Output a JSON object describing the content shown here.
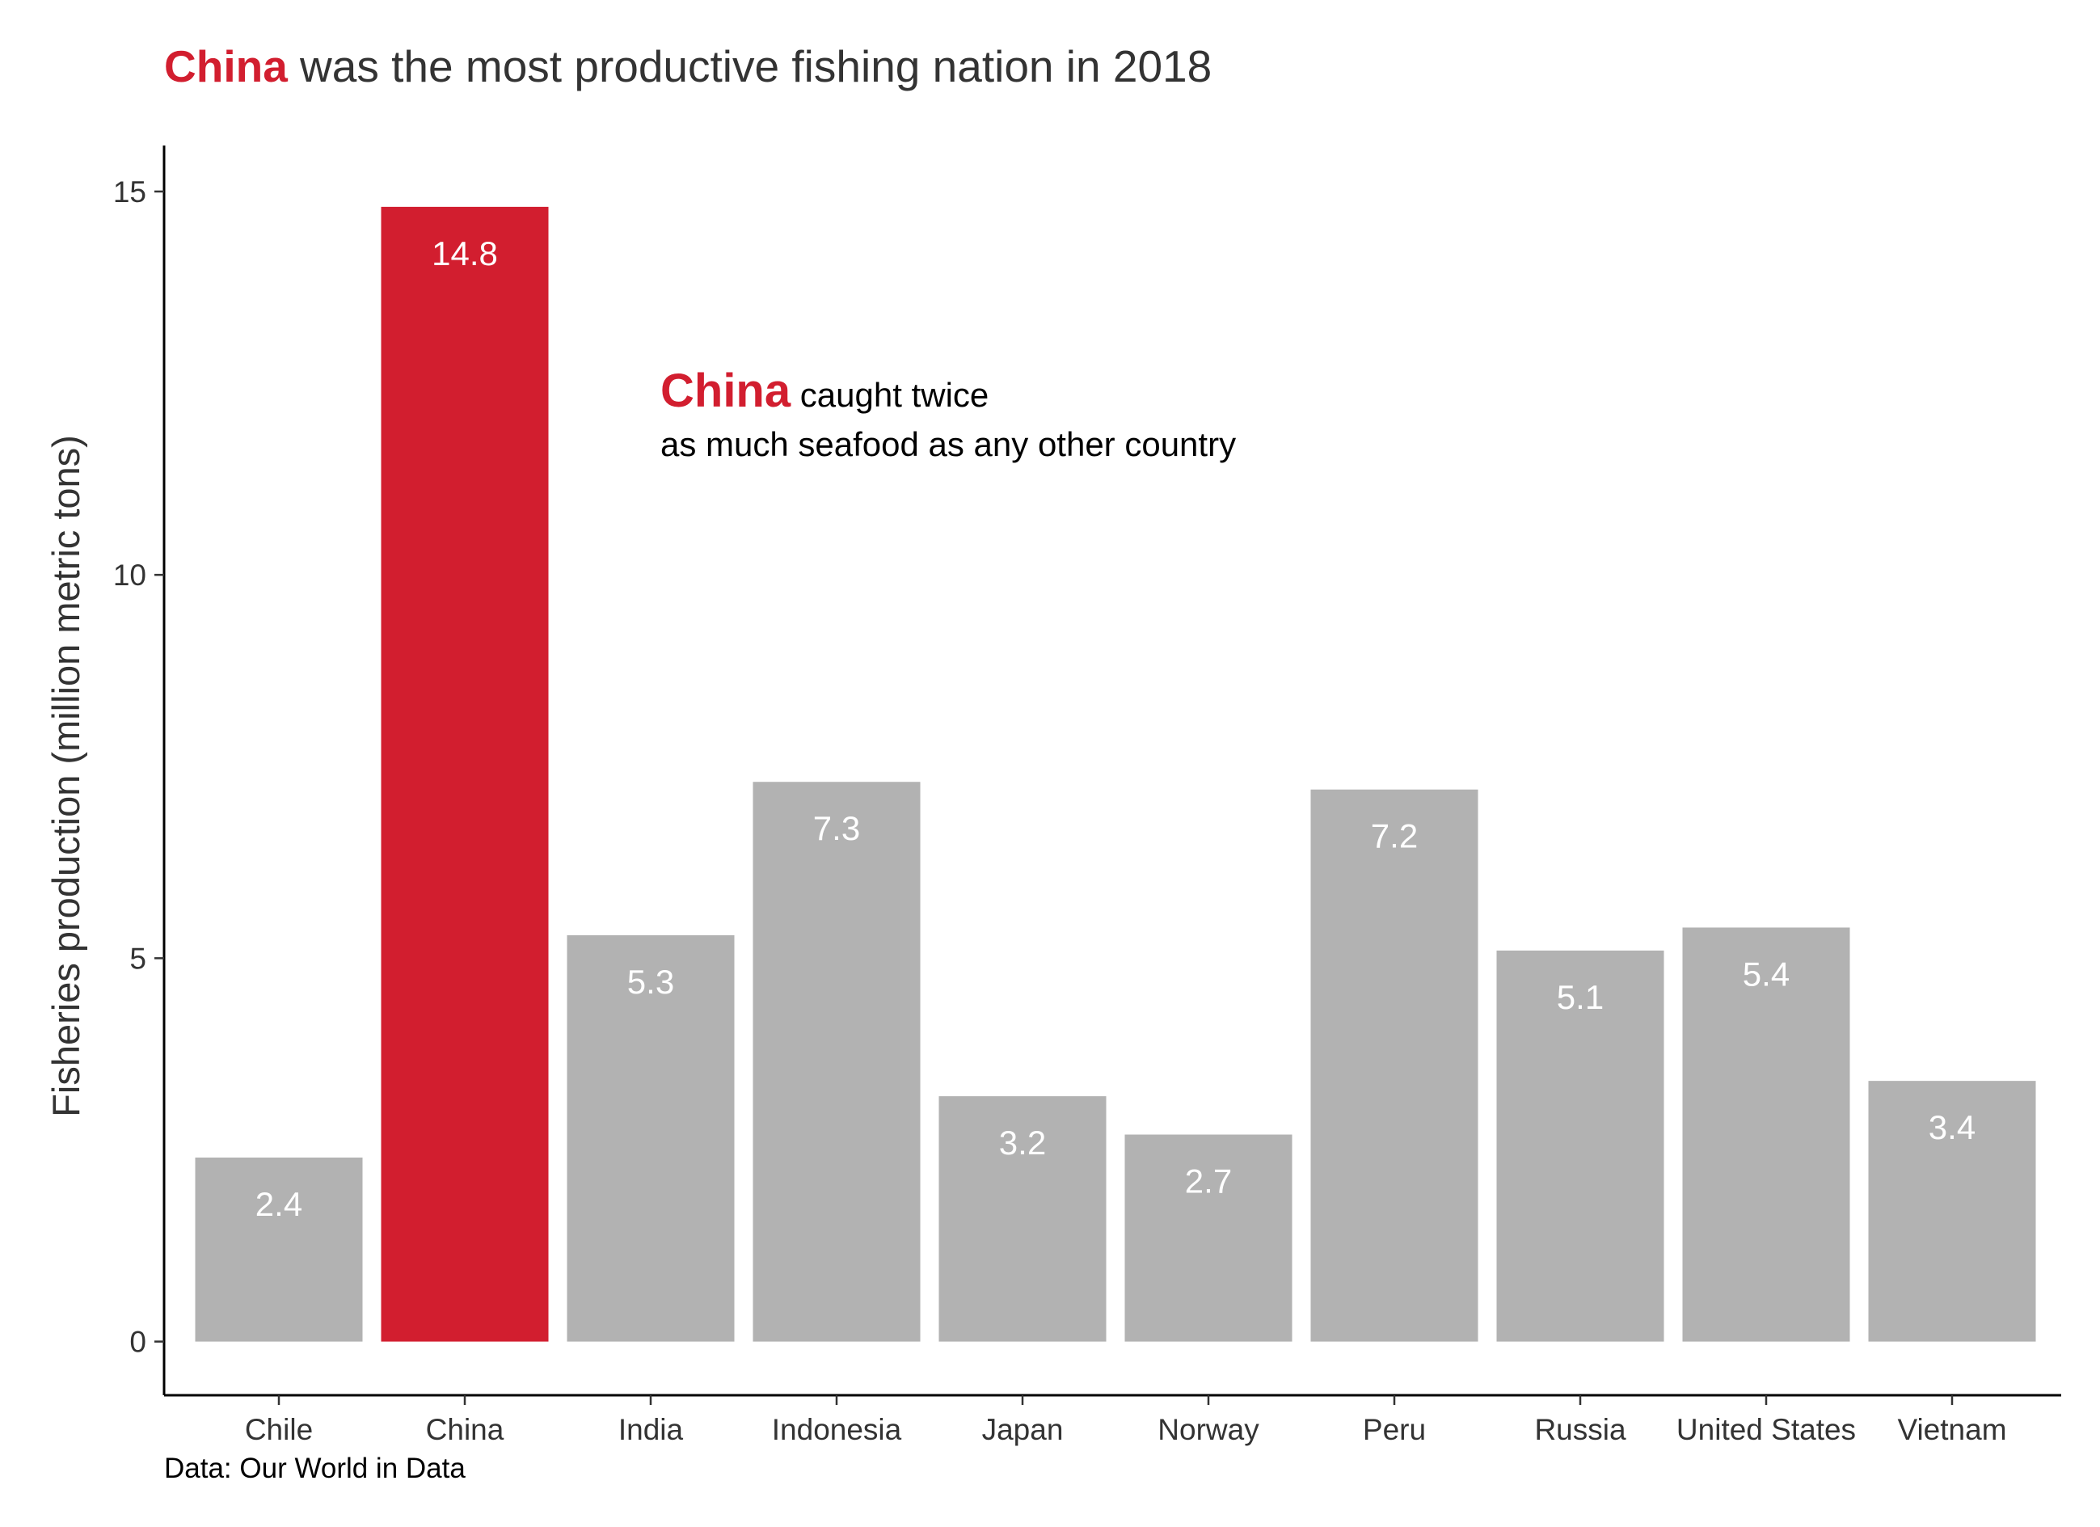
{
  "title": {
    "highlight": "China",
    "rest": " was the most productive fishing nation in 2018"
  },
  "annotation": {
    "highlight": "China",
    "line1_rest": " caught twice",
    "line2": "as much seafood as any other country"
  },
  "caption": "Data: Our World in Data",
  "colors": {
    "highlight": "#d21e2f",
    "bar": "#b2b2b2",
    "text": "#333333",
    "axis": "#000000",
    "label": "#ffffff"
  },
  "chart_data": {
    "type": "bar",
    "categories": [
      "Chile",
      "China",
      "India",
      "Indonesia",
      "Japan",
      "Norway",
      "Peru",
      "Russia",
      "United States",
      "Vietnam"
    ],
    "values": [
      2.4,
      14.8,
      5.3,
      7.3,
      3.2,
      2.7,
      7.2,
      5.1,
      5.4,
      3.4
    ],
    "data_labels": [
      "2.4",
      "14.8",
      "5.3",
      "7.3",
      "3.2",
      "2.7",
      "7.2",
      "5.1",
      "5.4",
      "3.4"
    ],
    "highlight_category": "China",
    "ylabel": "Fisheries production (million metric tons)",
    "xlabel": "",
    "yticks": [
      0,
      5,
      10,
      15
    ],
    "ylim": [
      -0.7,
      15.6
    ],
    "grid": false,
    "legend": "none"
  }
}
